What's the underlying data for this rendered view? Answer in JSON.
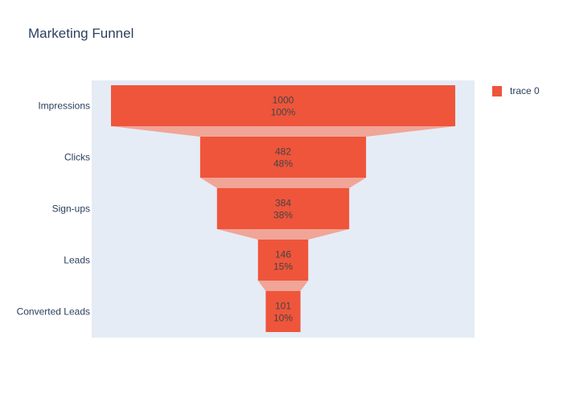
{
  "chart_data": {
    "type": "funnel",
    "title": "Marketing Funnel",
    "categories": [
      "Impressions",
      "Clicks",
      "Sign-ups",
      "Leads",
      "Converted Leads"
    ],
    "values": [
      1000,
      482,
      384,
      146,
      101
    ],
    "percent_labels": [
      "100%",
      "48%",
      "38%",
      "15%",
      "10%"
    ],
    "series": [
      {
        "name": "trace 0",
        "values": [
          1000,
          482,
          384,
          146,
          101
        ]
      }
    ],
    "xlabel": "",
    "ylabel": "",
    "grid": false,
    "legend_position": "top-right"
  },
  "colors": {
    "bar": "#ef553b",
    "connector": "#f0a597",
    "plot_background": "#e5ecf6",
    "text": "#2a3f5f",
    "bar_text": "#444444"
  }
}
